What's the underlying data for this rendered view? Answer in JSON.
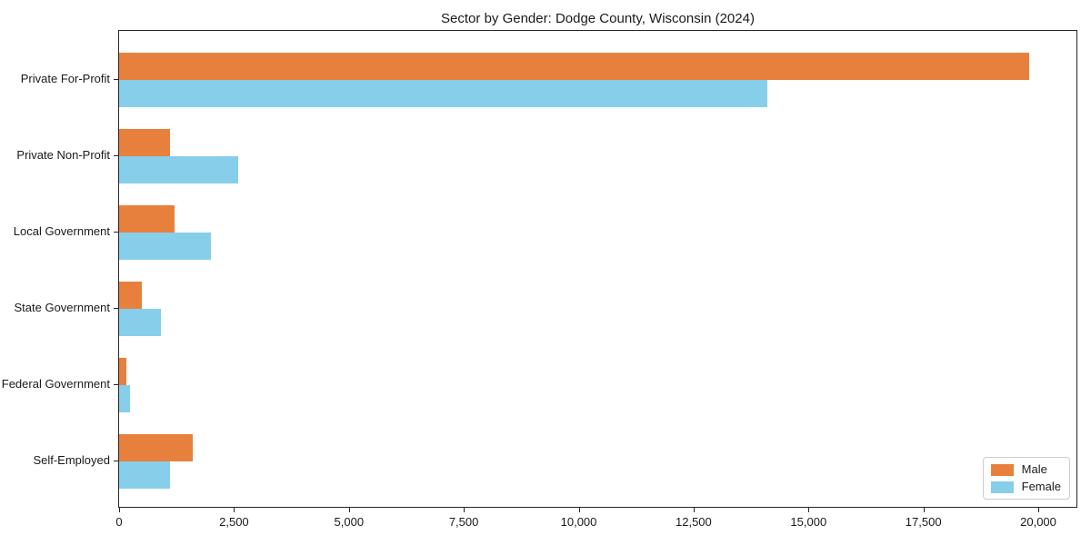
{
  "chart_data": {
    "type": "bar",
    "orientation": "horizontal",
    "title": "Sector by Gender: Dodge County, Wisconsin (2024)",
    "categories": [
      "Private For-Profit",
      "Private Non-Profit",
      "Local Government",
      "State Government",
      "Federal Government",
      "Self-Employed"
    ],
    "series": [
      {
        "name": "Male",
        "color": "#e8803d",
        "values": [
          19800,
          1100,
          1200,
          500,
          150,
          1600
        ]
      },
      {
        "name": "Female",
        "color": "#87ceeb",
        "values": [
          14100,
          2600,
          2000,
          900,
          230,
          1100
        ]
      }
    ],
    "xlabel": "",
    "ylabel": "",
    "xlim": [
      0,
      20830
    ],
    "xticks": [
      0,
      2500,
      5000,
      7500,
      10000,
      12500,
      15000,
      17500,
      20000
    ],
    "xtick_labels": [
      "0",
      "2,500",
      "5,000",
      "7,500",
      "10,000",
      "12,500",
      "15,000",
      "17,500",
      "20,000"
    ],
    "legend_position": "lower right",
    "grid": false,
    "colors": {
      "male": "#e8803d",
      "female": "#87ceeb",
      "spine": "#262626",
      "text": "#1a1a1a",
      "legend_border": "#cccccc"
    }
  }
}
